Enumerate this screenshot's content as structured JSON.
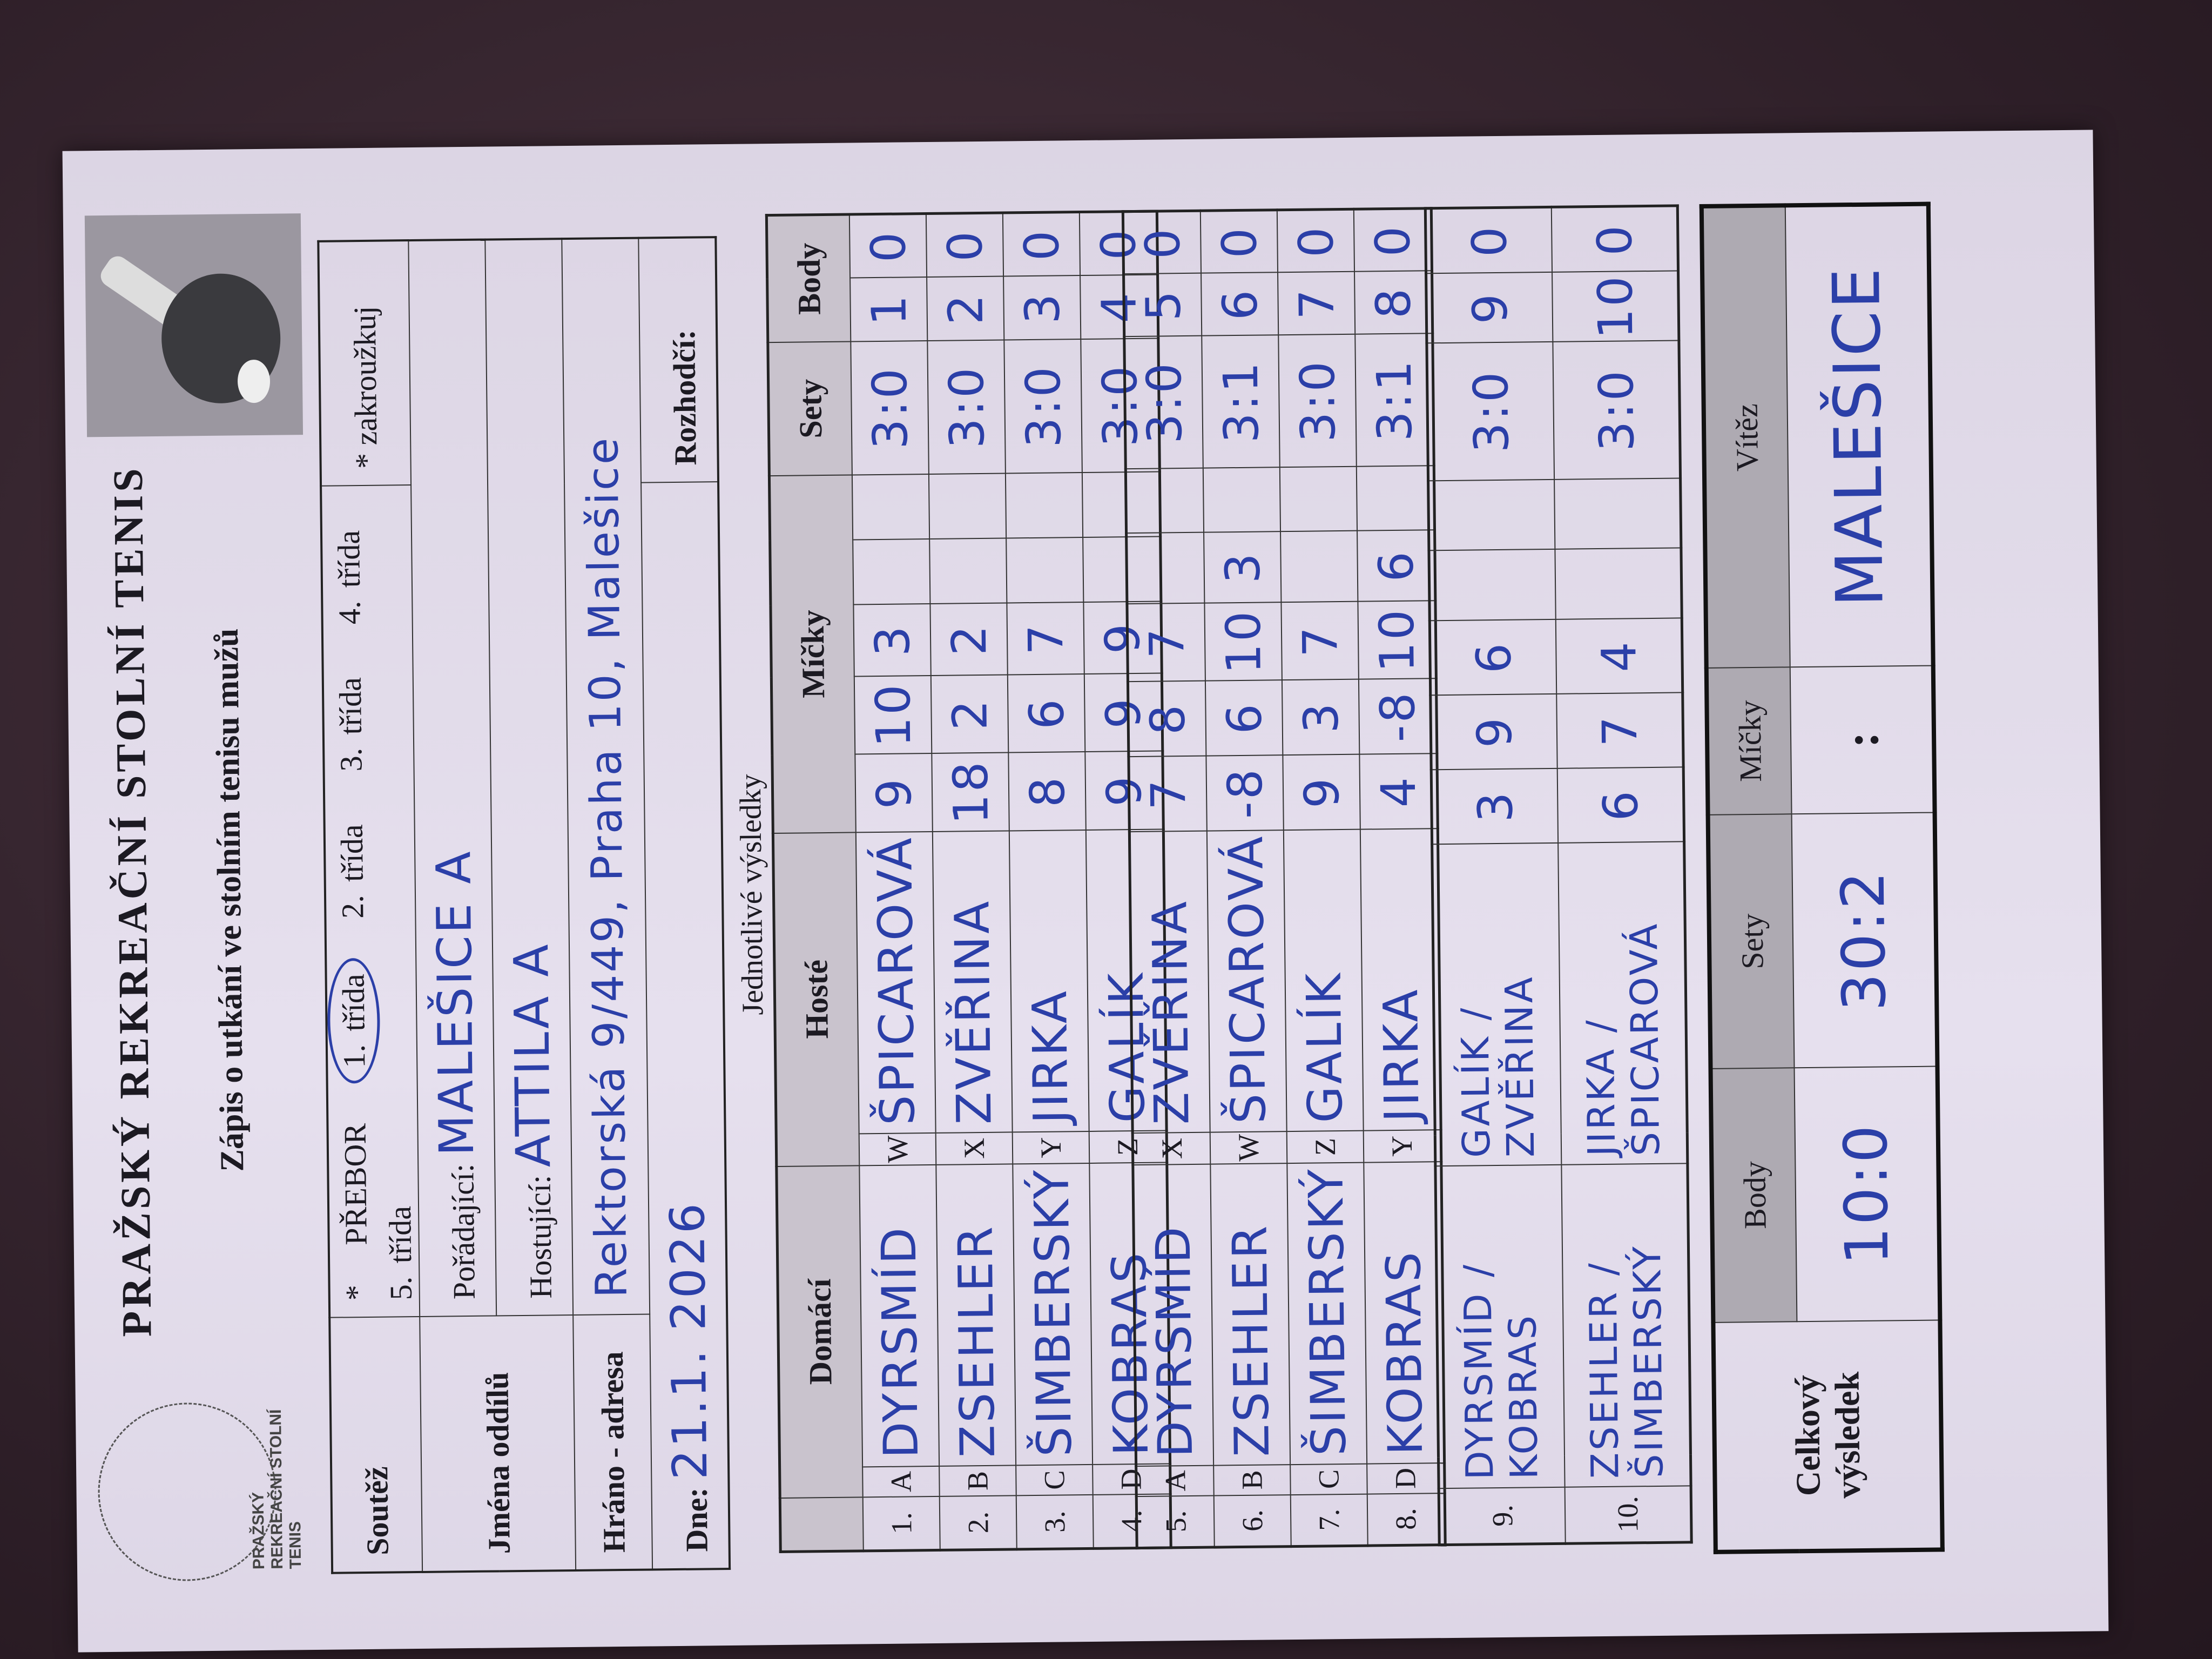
{
  "header": {
    "title": "PRAŽSKÝ REKREAČNÍ STOLNÍ TENIS",
    "subtitle": "Zápis o utkání ve stolním tenisu mužů",
    "logo_text": "PRAŽSKÝ REKREAČNÍ STOLNÍ TENIS"
  },
  "info": {
    "soutez_label": "Soutěž",
    "star": "*",
    "prebor": "PŘEBOR",
    "classes": [
      "1. třída",
      "2. třída",
      "3. třída",
      "4. třída",
      "5. třída"
    ],
    "selected_class": "1. třída",
    "note": "* zakroužkuj",
    "jmena_label": "Jména oddílů",
    "poradajici_label": "Pořádající:",
    "poradajici": "MALEŠICE A",
    "hostujici_label": "Hostující:",
    "hostujici": "ATTILA A",
    "hrano_label": "Hráno - adresa",
    "hrano": "Rektorská 9/449, Praha 10, Malešice",
    "dne_label": "Dne:",
    "dne": "21.1. 2026",
    "rozhodci_label": "Rozhodčí:",
    "rozhodci": ""
  },
  "results": {
    "label": "Jednotlivé výsledky",
    "headers": {
      "domaci": "Domácí",
      "hoste": "Hosté",
      "micky": "Míčky",
      "sety": "Sety",
      "body": "Body"
    },
    "rows": [
      {
        "n": "1.",
        "hl": "A",
        "home": "DYRSMÍD",
        "gl": "W",
        "guest": "ŠPICAROVÁ",
        "balls": [
          "9",
          "10",
          "3",
          "",
          ""
        ],
        "sets": "3:0",
        "bh": "1",
        "bg": "0"
      },
      {
        "n": "2.",
        "hl": "B",
        "home": "ZSEHLER",
        "gl": "X",
        "guest": "ZVĚŘINA",
        "balls": [
          "18",
          "2",
          "2",
          "",
          ""
        ],
        "sets": "3:0",
        "bh": "2",
        "bg": "0"
      },
      {
        "n": "3.",
        "hl": "C",
        "home": "ŠIMBERSKÝ",
        "gl": "Y",
        "guest": "JIRKA",
        "balls": [
          "8",
          "6",
          "7",
          "",
          ""
        ],
        "sets": "3:0",
        "bh": "3",
        "bg": "0"
      },
      {
        "n": "4.",
        "hl": "D",
        "home": "KOBRAS",
        "gl": "Z",
        "guest": "GALÍK",
        "balls": [
          "9",
          "9",
          "9",
          "",
          ""
        ],
        "sets": "3:0",
        "bh": "4",
        "bg": "0"
      },
      {
        "n": "5.",
        "hl": "A",
        "home": "DYRSMÍD",
        "gl": "X",
        "guest": "ZVĚŘINA",
        "balls": [
          "7",
          "8",
          "7",
          "",
          ""
        ],
        "sets": "3:0",
        "bh": "5",
        "bg": "0"
      },
      {
        "n": "6.",
        "hl": "B",
        "home": "ZSEHLER",
        "gl": "W",
        "guest": "ŠPICAROVÁ",
        "balls": [
          "-8",
          "6",
          "10",
          "3",
          ""
        ],
        "sets": "3:1",
        "bh": "6",
        "bg": "0"
      },
      {
        "n": "7.",
        "hl": "C",
        "home": "ŠIMBERSKÝ",
        "gl": "Z",
        "guest": "GALÍK",
        "balls": [
          "9",
          "3",
          "7",
          "",
          ""
        ],
        "sets": "3:0",
        "bh": "7",
        "bg": "0"
      },
      {
        "n": "8.",
        "hl": "D",
        "home": "KOBRAS",
        "gl": "Y",
        "guest": "JIRKA",
        "balls": [
          "4",
          "-8",
          "10",
          "6",
          ""
        ],
        "sets": "3:1",
        "bh": "8",
        "bg": "0"
      }
    ],
    "doubles": [
      {
        "n": "9.",
        "home": "DYRSMÍD / KOBRAS",
        "guest": "GALÍK / ZVĚŘINA",
        "balls": [
          "3",
          "9",
          "6",
          "",
          ""
        ],
        "sets": "3:0",
        "bh": "9",
        "bg": "0"
      },
      {
        "n": "10.",
        "home": "ZSEHLER / ŠIMBERSKÝ",
        "guest": "JIRKA / ŠPICAROVÁ",
        "balls": [
          "6",
          "7",
          "4",
          "",
          ""
        ],
        "sets": "3:0",
        "bh": "10",
        "bg": "0"
      }
    ]
  },
  "total": {
    "label": "Celkový výsledek",
    "body_label": "Body",
    "sety_label": "Sety",
    "micky_label": "Míčky",
    "vitez_label": "Vítěz",
    "body": "10:0",
    "sety": "30:2",
    "micky": ":",
    "vitez": "MALEŠICE"
  },
  "colors": {
    "ink": "#2b3fa8",
    "header_fill": "#c9c3cd",
    "background": "#2e1f28"
  }
}
